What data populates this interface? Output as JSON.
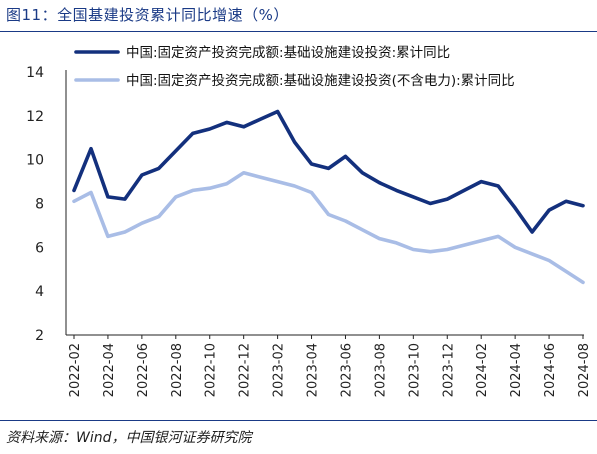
{
  "figure": {
    "title": "图11：全国基建投资累计同比增速（%）",
    "source": "资料来源：Wind，中国银河证券研究院"
  },
  "colors": {
    "title": "#1a3a86",
    "series_primary": "#13307d",
    "series_secondary": "#a9bde6",
    "axis": "#222222"
  },
  "chart_data": {
    "type": "line",
    "title": "",
    "xlabel": "",
    "ylabel": "",
    "ylim": [
      2,
      14
    ],
    "yticks": [
      2,
      4,
      6,
      8,
      10,
      12,
      14
    ],
    "grid": false,
    "legend_position": "top-right",
    "x": [
      "2022-02",
      "2022-03",
      "2022-04",
      "2022-05",
      "2022-06",
      "2022-07",
      "2022-08",
      "2022-09",
      "2022-10",
      "2022-11",
      "2022-12",
      "2023-01",
      "2023-02",
      "2023-03",
      "2023-04",
      "2023-05",
      "2023-06",
      "2023-07",
      "2023-08",
      "2023-09",
      "2023-10",
      "2023-11",
      "2023-12",
      "2024-01",
      "2024-02",
      "2024-03",
      "2024-04",
      "2024-05",
      "2024-06",
      "2024-07",
      "2024-08"
    ],
    "xtick_labels": [
      "2022-02",
      "2022-04",
      "2022-06",
      "2022-08",
      "2022-10",
      "2022-12",
      "2023-02",
      "2023-04",
      "2023-06",
      "2023-08",
      "2023-10",
      "2023-12",
      "2024-02",
      "2024-04",
      "2024-06",
      "2024-08"
    ],
    "series": [
      {
        "name": "中国:固定资产投资完成额:基础设施建设投资:累计同比",
        "color": "#13307d",
        "values": [
          8.6,
          10.5,
          8.3,
          8.2,
          9.3,
          9.6,
          10.4,
          11.2,
          11.4,
          11.7,
          11.5,
          11.85,
          12.2,
          10.8,
          9.8,
          9.6,
          10.15,
          9.4,
          8.95,
          8.6,
          8.3,
          8.0,
          8.2,
          8.6,
          9.0,
          8.8,
          7.8,
          6.7,
          7.7,
          8.1,
          7.9
        ]
      },
      {
        "name": "中国:固定资产投资完成额:基础设施建设投资(不含电力):累计同比",
        "color": "#a9bde6",
        "values": [
          8.1,
          8.5,
          6.5,
          6.7,
          7.1,
          7.4,
          8.3,
          8.6,
          8.7,
          8.9,
          9.4,
          9.2,
          9.0,
          8.8,
          8.5,
          7.5,
          7.2,
          6.8,
          6.4,
          6.2,
          5.9,
          5.8,
          5.9,
          6.1,
          6.3,
          6.5,
          6.0,
          5.7,
          5.4,
          4.9,
          4.4
        ]
      }
    ]
  }
}
